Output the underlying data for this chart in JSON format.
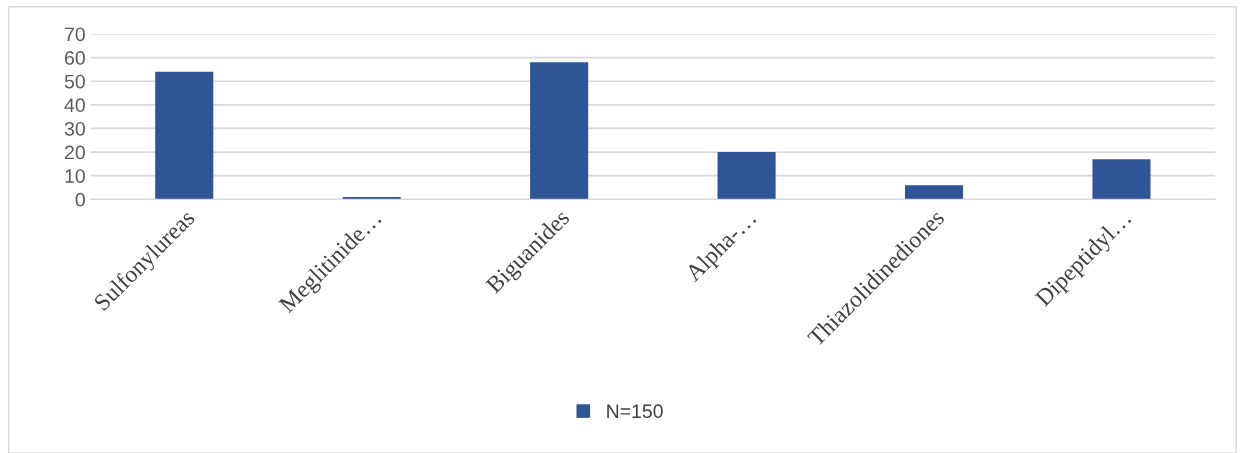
{
  "chart_data": {
    "type": "bar",
    "categories": [
      "Sulfonylureas",
      "Meglitinide…",
      "Biguanides",
      "Alpha-…",
      "Thiazolidinediones",
      "Dipeptidyl…"
    ],
    "series": [
      {
        "name": "N=150",
        "color": "#2f5597",
        "values": [
          54,
          1,
          58,
          20,
          6,
          17
        ]
      }
    ],
    "ylim": [
      0,
      70
    ],
    "yticks": [
      0,
      10,
      20,
      30,
      40,
      50,
      60,
      70
    ],
    "grid": "y",
    "legend": "bottom"
  }
}
